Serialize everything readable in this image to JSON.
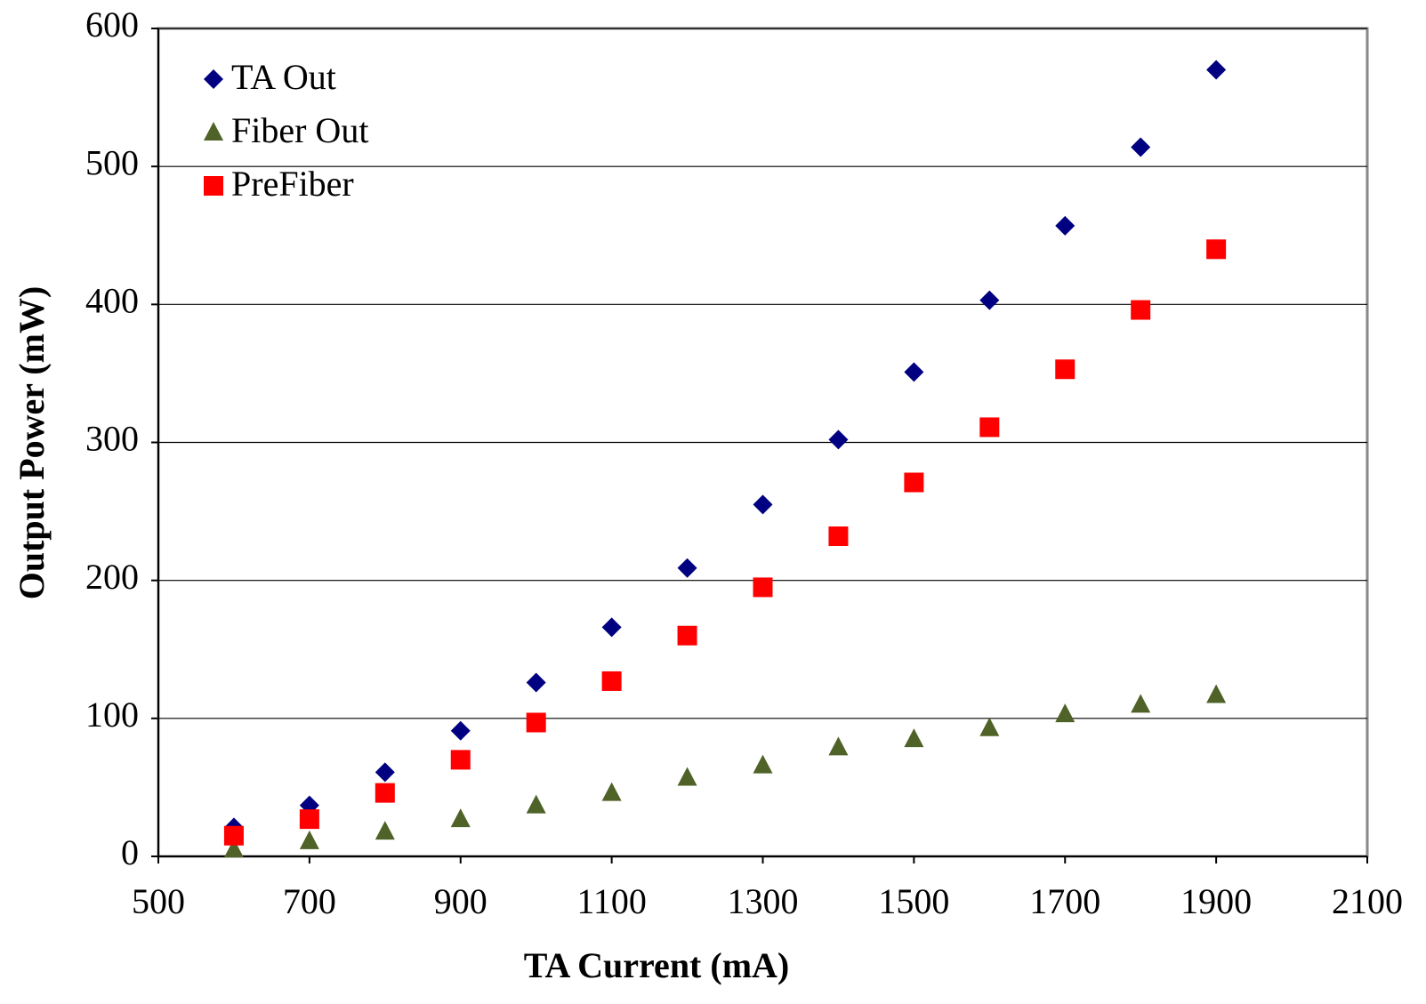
{
  "chart_data": {
    "type": "scatter",
    "x_label": "TA Current (mA)",
    "y_label": "Output Power (mW)",
    "xlim": [
      500,
      2100
    ],
    "xticks": [
      500,
      700,
      900,
      1100,
      1300,
      1500,
      1700,
      1900,
      2100
    ],
    "ylim": [
      0,
      600
    ],
    "yticks": [
      0,
      100,
      200,
      300,
      400,
      500,
      600
    ],
    "grid": true,
    "legend": "top-left",
    "x": [
      600,
      700,
      800,
      900,
      1000,
      1100,
      1200,
      1300,
      1400,
      1500,
      1600,
      1700,
      1800,
      1900
    ],
    "series": [
      {
        "name": "TA Out",
        "color": "#000080",
        "marker": "diamond",
        "values": [
          21,
          37,
          61,
          91,
          126,
          166,
          209,
          255,
          302,
          351,
          403,
          457,
          514,
          570
        ]
      },
      {
        "name": "Fiber Out",
        "color": "#4f6228",
        "marker": "triangle",
        "values": [
          5,
          11,
          18,
          27,
          37,
          46,
          57,
          66,
          79,
          85,
          93,
          103,
          110,
          117
        ]
      },
      {
        "name": "PreFiber",
        "color": "#ff0000",
        "marker": "square",
        "values": [
          15,
          27,
          46,
          70,
          97,
          127,
          160,
          195,
          232,
          271,
          311,
          353,
          396,
          440
        ]
      }
    ]
  }
}
